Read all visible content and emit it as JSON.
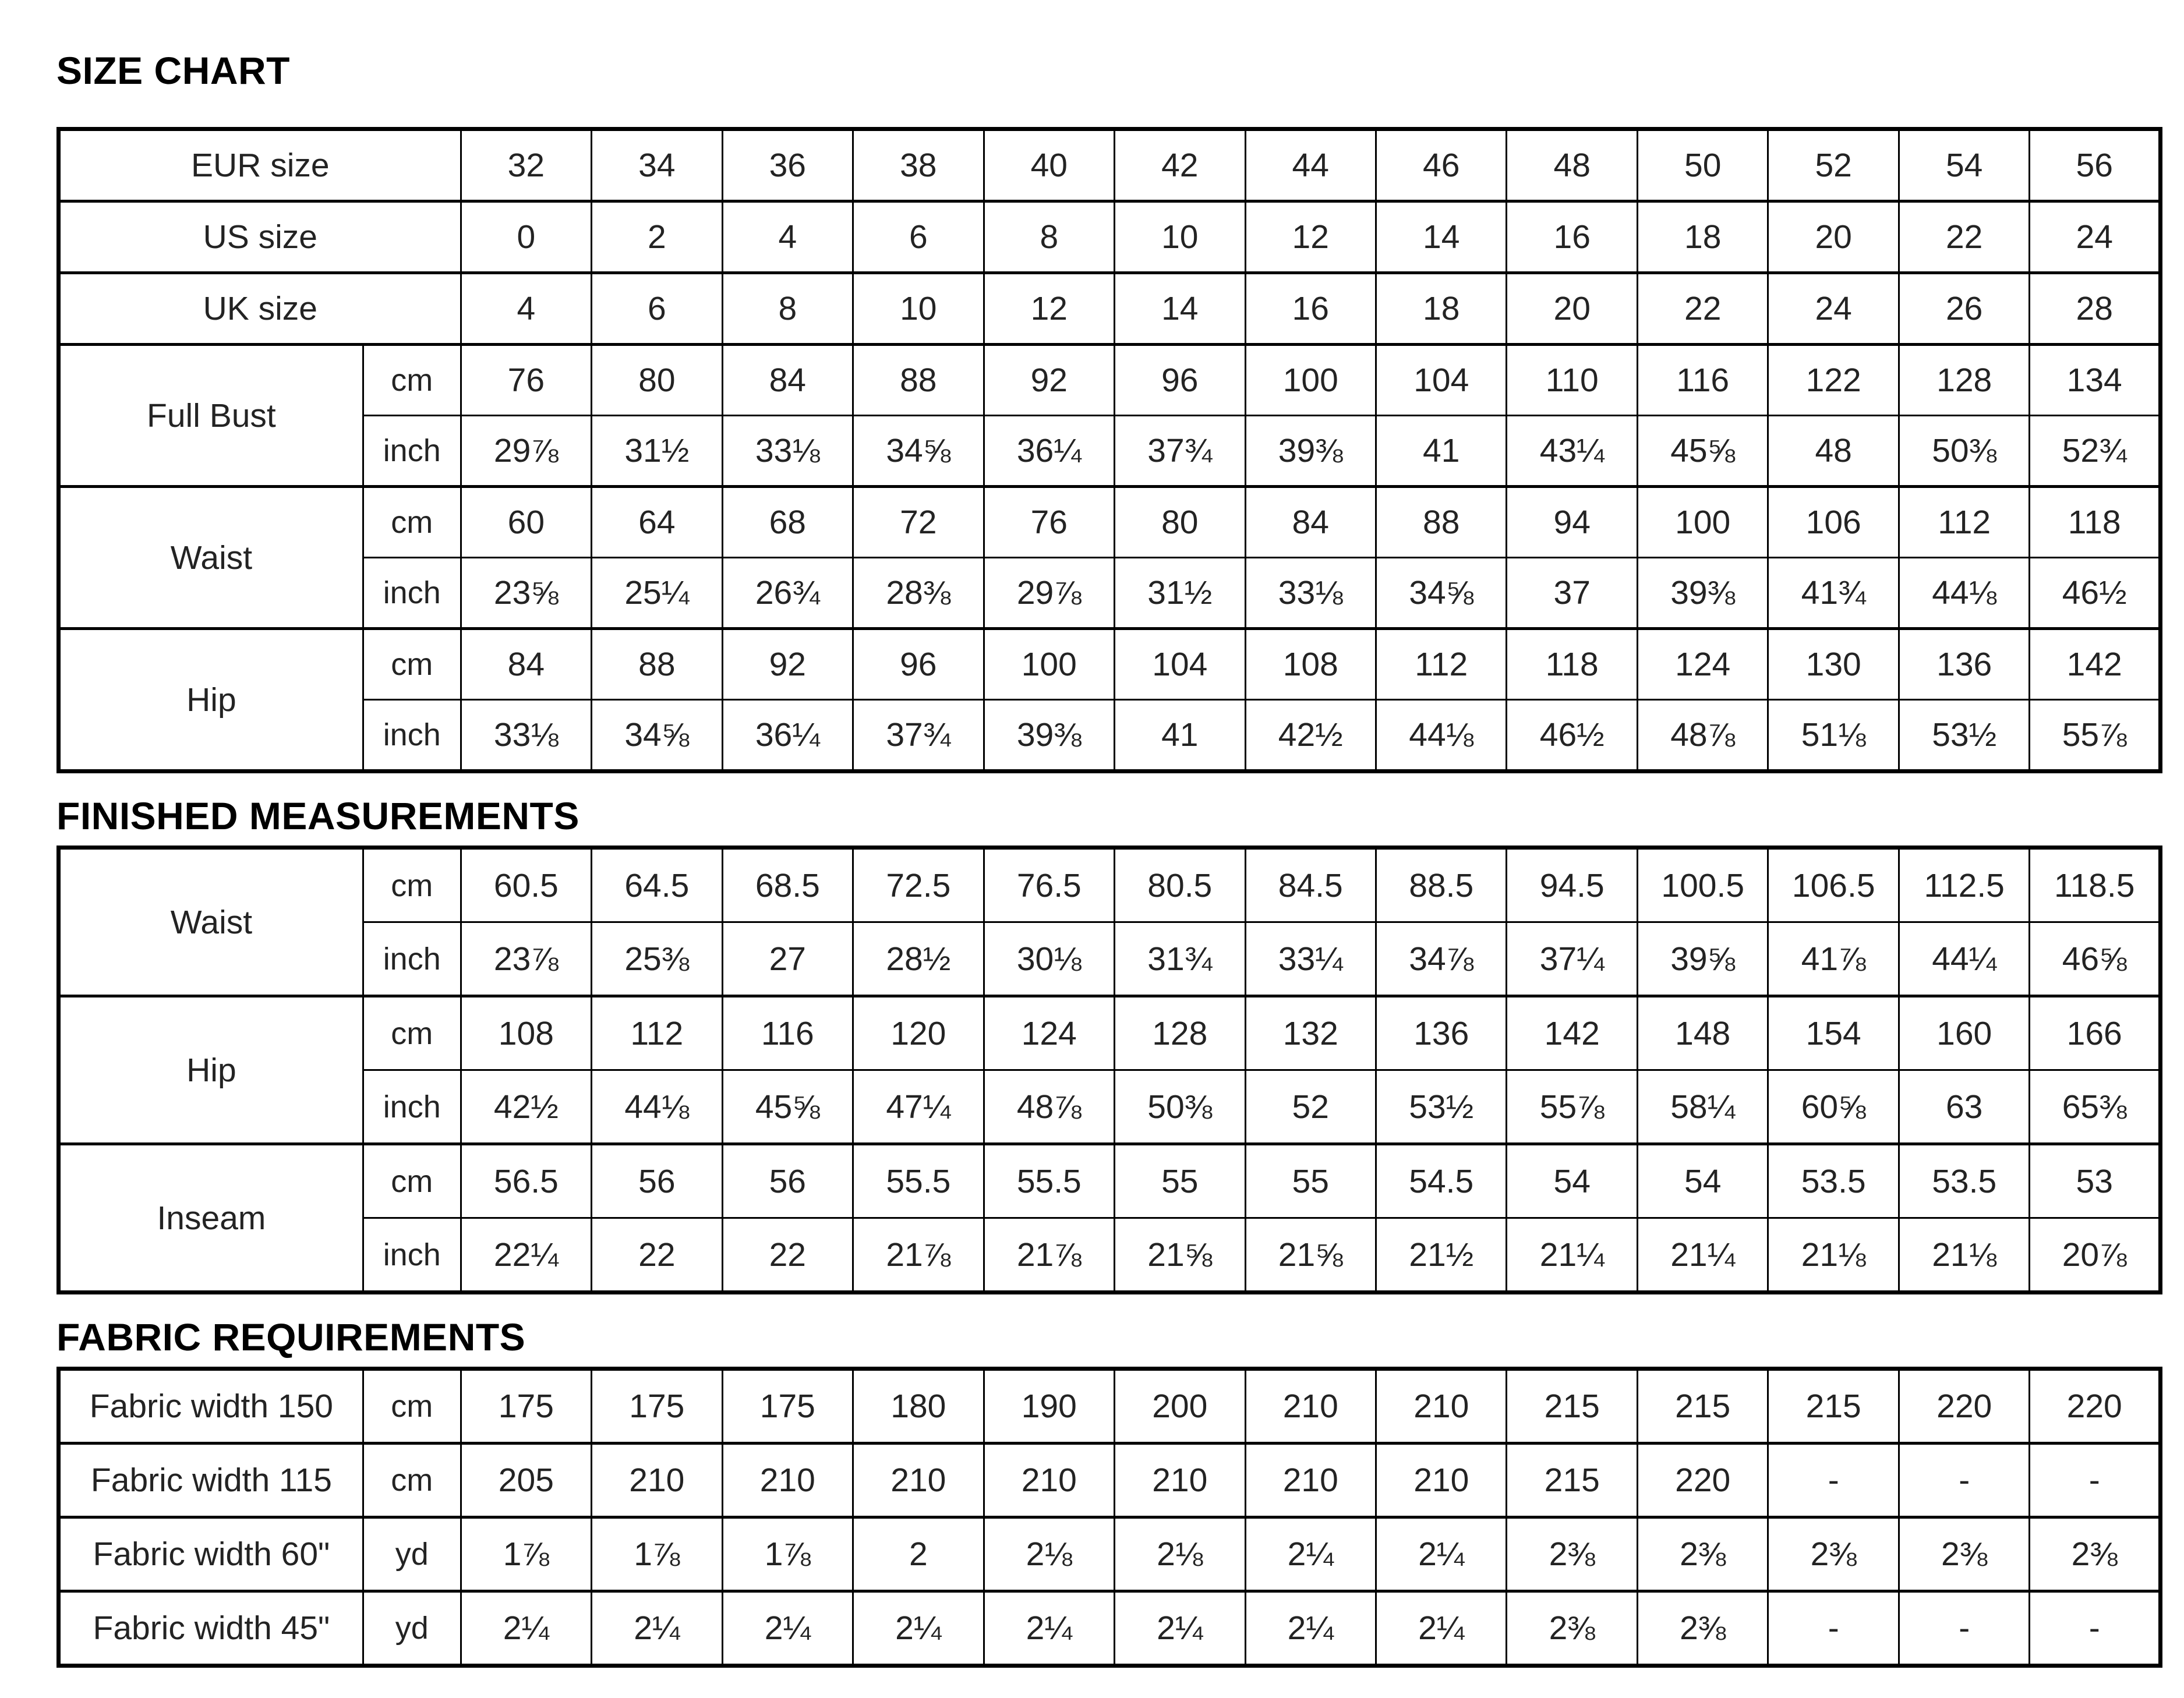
{
  "page": {
    "background": "#ffffff",
    "text_color": "#232323",
    "border_color": "#000000",
    "title_color": "#000000"
  },
  "sections": [
    {
      "title": "SIZE CHART",
      "rows": [
        {
          "label": "EUR size",
          "values": [
            "32",
            "34",
            "36",
            "38",
            "40",
            "42",
            "44",
            "46",
            "48",
            "50",
            "52",
            "54",
            "56"
          ]
        },
        {
          "label": "US size",
          "values": [
            "0",
            "2",
            "4",
            "6",
            "8",
            "10",
            "12",
            "14",
            "16",
            "18",
            "20",
            "22",
            "24"
          ]
        },
        {
          "label": "UK size",
          "values": [
            "4",
            "6",
            "8",
            "10",
            "12",
            "14",
            "16",
            "18",
            "20",
            "22",
            "24",
            "26",
            "28"
          ]
        },
        {
          "label": "Full Bust",
          "subrows": [
            {
              "unit": "cm",
              "values": [
                "76",
                "80",
                "84",
                "88",
                "92",
                "96",
                "100",
                "104",
                "110",
                "116",
                "122",
                "128",
                "134"
              ]
            },
            {
              "unit": "inch",
              "values": [
                "29⅞",
                "31½",
                "33⅛",
                "34⅝",
                "36¼",
                "37¾",
                "39⅜",
                "41",
                "43¼",
                "45⅝",
                "48",
                "50⅜",
                "52¾"
              ]
            }
          ]
        },
        {
          "label": "Waist",
          "subrows": [
            {
              "unit": "cm",
              "values": [
                "60",
                "64",
                "68",
                "72",
                "76",
                "80",
                "84",
                "88",
                "94",
                "100",
                "106",
                "112",
                "118"
              ]
            },
            {
              "unit": "inch",
              "values": [
                "23⅝",
                "25¼",
                "26¾",
                "28⅜",
                "29⅞",
                "31½",
                "33⅛",
                "34⅝",
                "37",
                "39⅜",
                "41¾",
                "44⅛",
                "46½"
              ]
            }
          ]
        },
        {
          "label": "Hip",
          "subrows": [
            {
              "unit": "cm",
              "values": [
                "84",
                "88",
                "92",
                "96",
                "100",
                "104",
                "108",
                "112",
                "118",
                "124",
                "130",
                "136",
                "142"
              ]
            },
            {
              "unit": "inch",
              "values": [
                "33⅛",
                "34⅝",
                "36¼",
                "37¾",
                "39⅜",
                "41",
                "42½",
                "44⅛",
                "46½",
                "48⅞",
                "51⅛",
                "53½",
                "55⅞"
              ]
            }
          ]
        }
      ]
    },
    {
      "title": "FINISHED MEASUREMENTS",
      "rows": [
        {
          "label": "Waist",
          "subrows": [
            {
              "unit": "cm",
              "values": [
                "60.5",
                "64.5",
                "68.5",
                "72.5",
                "76.5",
                "80.5",
                "84.5",
                "88.5",
                "94.5",
                "100.5",
                "106.5",
                "112.5",
                "118.5"
              ]
            },
            {
              "unit": "inch",
              "values": [
                "23⅞",
                "25⅜",
                "27",
                "28½",
                "30⅛",
                "31¾",
                "33¼",
                "34⅞",
                "37¼",
                "39⅝",
                "41⅞",
                "44¼",
                "46⅝"
              ]
            }
          ]
        },
        {
          "label": "Hip",
          "subrows": [
            {
              "unit": "cm",
              "values": [
                "108",
                "112",
                "116",
                "120",
                "124",
                "128",
                "132",
                "136",
                "142",
                "148",
                "154",
                "160",
                "166"
              ]
            },
            {
              "unit": "inch",
              "values": [
                "42½",
                "44⅛",
                "45⅝",
                "47¼",
                "48⅞",
                "50⅜",
                "52",
                "53½",
                "55⅞",
                "58¼",
                "60⅝",
                "63",
                "65⅜"
              ]
            }
          ]
        },
        {
          "label": "Inseam",
          "subrows": [
            {
              "unit": "cm",
              "values": [
                "56.5",
                "56",
                "56",
                "55.5",
                "55.5",
                "55",
                "55",
                "54.5",
                "54",
                "54",
                "53.5",
                "53.5",
                "53"
              ]
            },
            {
              "unit": "inch",
              "values": [
                "22¼",
                "22",
                "22",
                "21⅞",
                "21⅞",
                "21⅝",
                "21⅝",
                "21½",
                "21¼",
                "21¼",
                "21⅛",
                "21⅛",
                "20⅞"
              ]
            }
          ]
        }
      ]
    },
    {
      "title": "FABRIC REQUIREMENTS",
      "rows": [
        {
          "label": "Fabric width 150",
          "unit": "cm",
          "values": [
            "175",
            "175",
            "175",
            "180",
            "190",
            "200",
            "210",
            "210",
            "215",
            "215",
            "215",
            "220",
            "220"
          ]
        },
        {
          "label": "Fabric width 115",
          "unit": "cm",
          "values": [
            "205",
            "210",
            "210",
            "210",
            "210",
            "210",
            "210",
            "210",
            "215",
            "220",
            "-",
            "-",
            "-"
          ]
        },
        {
          "label": "Fabric width 60\"",
          "unit": "yd",
          "values": [
            "1⅞",
            "1⅞",
            "1⅞",
            "2",
            "2⅛",
            "2⅛",
            "2¼",
            "2¼",
            "2⅜",
            "2⅜",
            "2⅜",
            "2⅜",
            "2⅜"
          ]
        },
        {
          "label": "Fabric width 45\"",
          "unit": "yd",
          "values": [
            "2¼",
            "2¼",
            "2¼",
            "2¼",
            "2¼",
            "2¼",
            "2¼",
            "2¼",
            "2⅜",
            "2⅜",
            "-",
            "-",
            "-"
          ]
        }
      ]
    }
  ]
}
